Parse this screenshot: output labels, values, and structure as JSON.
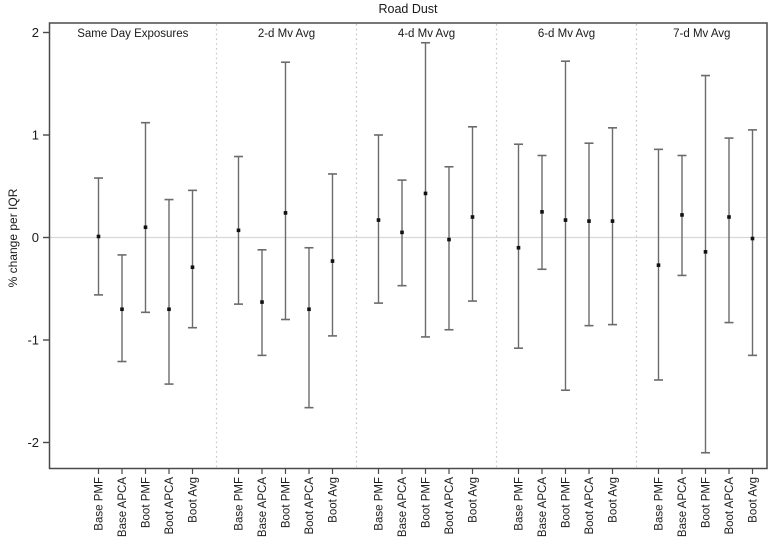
{
  "title": "Road Dust",
  "y_axis_label": "% change per IQR",
  "chart_data": {
    "type": "errorbar",
    "title": "Road Dust",
    "ylabel": "% change per IQR",
    "ylim": [
      -2.2,
      2.05
    ],
    "ytick_values": [
      2,
      1,
      0,
      -1,
      -2
    ],
    "ytick_labels": [
      "2",
      "1",
      "0",
      "-1",
      "-2"
    ],
    "zero_reference_line": 0,
    "grid": "zero-line only",
    "legend": "none",
    "categories": [
      "Base PMF",
      "Base APCA",
      "Boot PMF",
      "Boot APCA",
      "Boot Avg"
    ],
    "groups": [
      {
        "label": "Same Day Exposures",
        "points": [
          {
            "category": "Base PMF",
            "est": 0.01,
            "lo": -0.56,
            "hi": 0.58
          },
          {
            "category": "Base APCA",
            "est": -0.7,
            "lo": -1.21,
            "hi": -0.17
          },
          {
            "category": "Boot PMF",
            "est": 0.1,
            "lo": -0.73,
            "hi": 1.12
          },
          {
            "category": "Boot APCA",
            "est": -0.7,
            "lo": -1.43,
            "hi": 0.37
          },
          {
            "category": "Boot Avg",
            "est": -0.29,
            "lo": -0.88,
            "hi": 0.46
          }
        ]
      },
      {
        "label": "2-d Mv Avg",
        "points": [
          {
            "category": "Base PMF",
            "est": 0.07,
            "lo": -0.65,
            "hi": 0.79
          },
          {
            "category": "Base APCA",
            "est": -0.63,
            "lo": -1.15,
            "hi": -0.12
          },
          {
            "category": "Boot PMF",
            "est": 0.24,
            "lo": -0.8,
            "hi": 1.71
          },
          {
            "category": "Boot APCA",
            "est": -0.7,
            "lo": -1.66,
            "hi": -0.1
          },
          {
            "category": "Boot Avg",
            "est": -0.23,
            "lo": -0.96,
            "hi": 0.62
          }
        ]
      },
      {
        "label": "4-d Mv Avg",
        "points": [
          {
            "category": "Base PMF",
            "est": 0.17,
            "lo": -0.64,
            "hi": 1.0
          },
          {
            "category": "Base APCA",
            "est": 0.05,
            "lo": -0.47,
            "hi": 0.56
          },
          {
            "category": "Boot PMF",
            "est": 0.43,
            "lo": -0.97,
            "hi": 1.9
          },
          {
            "category": "Boot APCA",
            "est": -0.02,
            "lo": -0.9,
            "hi": 0.69
          },
          {
            "category": "Boot Avg",
            "est": 0.2,
            "lo": -0.62,
            "hi": 1.08
          }
        ]
      },
      {
        "label": "6-d Mv Avg",
        "points": [
          {
            "category": "Base PMF",
            "est": -0.1,
            "lo": -1.08,
            "hi": 0.91
          },
          {
            "category": "Base APCA",
            "est": 0.25,
            "lo": -0.31,
            "hi": 0.8
          },
          {
            "category": "Boot PMF",
            "est": 0.17,
            "lo": -1.49,
            "hi": 1.72
          },
          {
            "category": "Boot APCA",
            "est": 0.16,
            "lo": -0.86,
            "hi": 0.92
          },
          {
            "category": "Boot Avg",
            "est": 0.16,
            "lo": -0.85,
            "hi": 1.07
          }
        ]
      },
      {
        "label": "7-d Mv Avg",
        "points": [
          {
            "category": "Base PMF",
            "est": -0.27,
            "lo": -1.39,
            "hi": 0.86
          },
          {
            "category": "Base APCA",
            "est": 0.22,
            "lo": -0.37,
            "hi": 0.8
          },
          {
            "category": "Boot PMF",
            "est": -0.14,
            "lo": -2.1,
            "hi": 1.58
          },
          {
            "category": "Boot APCA",
            "est": 0.2,
            "lo": -0.83,
            "hi": 0.97
          },
          {
            "category": "Boot Avg",
            "est": -0.01,
            "lo": -1.15,
            "hi": 1.05
          }
        ]
      }
    ],
    "colors": {
      "error_bar": "#6b6b6b",
      "point": "#111111",
      "zero_line": "#d8d8d8",
      "separator": "#c6c6c6",
      "frame": "#4a4a4a",
      "text": "#1a1a1a"
    }
  }
}
